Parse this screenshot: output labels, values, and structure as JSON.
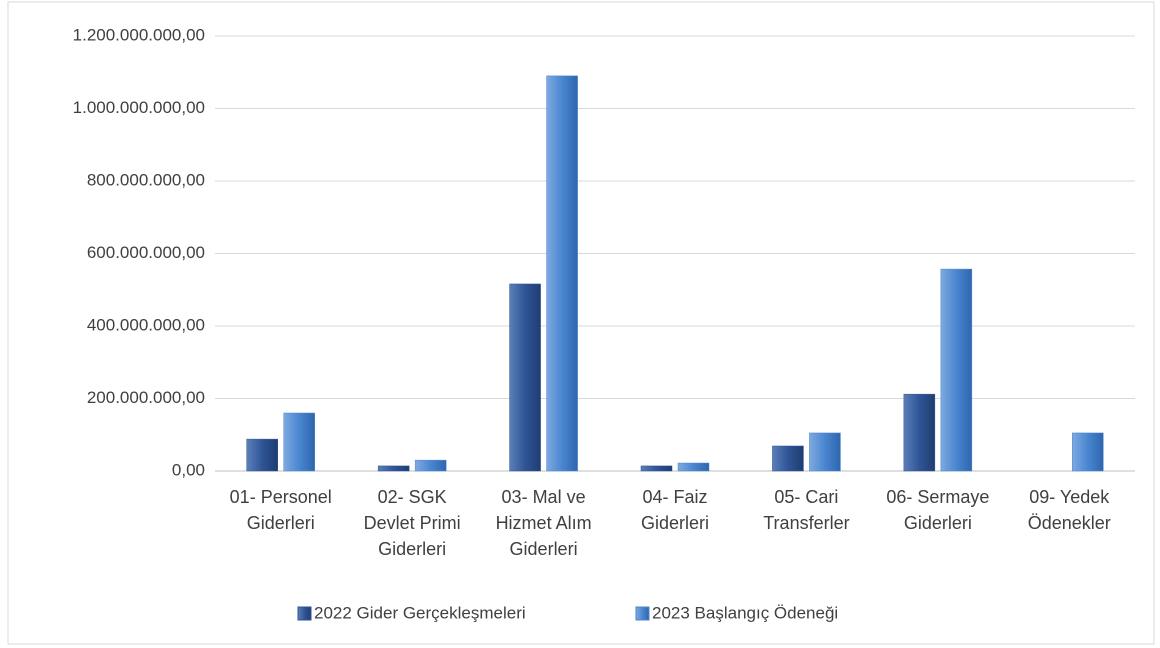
{
  "chart_data": {
    "type": "bar",
    "categories": [
      [
        "01- Personel",
        "Giderleri"
      ],
      [
        "02- SGK",
        "Devlet Primi",
        "Giderleri"
      ],
      [
        "03- Mal ve",
        "Hizmet Alım",
        "Giderleri"
      ],
      [
        "04- Faiz",
        "Giderleri"
      ],
      [
        "05- Cari",
        "Transferler"
      ],
      [
        "06- Sermaye",
        "Giderleri"
      ],
      [
        "09- Yedek",
        "Ödenekler"
      ]
    ],
    "series": [
      {
        "name": "2022 Gider Gerçekleşmeleri",
        "color": "#2f5597",
        "values": [
          88000000,
          14000000,
          516000000,
          14000000,
          69000000,
          212000000,
          0
        ]
      },
      {
        "name": "2023 Başlangıç Ödeneği",
        "color": "#4a86d0",
        "values": [
          160000000,
          30000000,
          1090000000,
          22000000,
          105000000,
          557000000,
          105000000
        ]
      }
    ],
    "ylim": [
      0,
      1200000000
    ],
    "yticks": [
      {
        "value": 0,
        "label": "0,00"
      },
      {
        "value": 200000000,
        "label": "200.000.000,00"
      },
      {
        "value": 400000000,
        "label": "400.000.000,00"
      },
      {
        "value": 600000000,
        "label": "600.000.000,00"
      },
      {
        "value": 800000000,
        "label": "800.000.000,00"
      },
      {
        "value": 1000000000,
        "label": "1.000.000.000,00"
      },
      {
        "value": 1200000000,
        "label": "1.200.000.000,00"
      }
    ],
    "grid": true,
    "legend": "bottom"
  }
}
